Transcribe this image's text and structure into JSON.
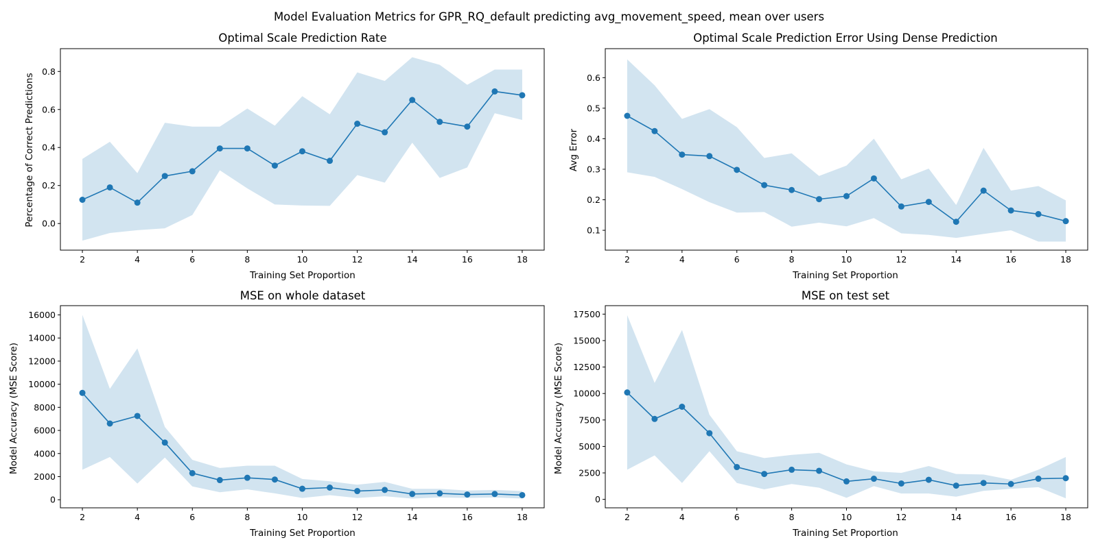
{
  "suptitle": "Model Evaluation Metrics for GPR_RQ_default predicting avg_movement_speed, mean over users",
  "colors": {
    "line": "#1f77b4",
    "band": "#1f77b4"
  },
  "chart_data": [
    {
      "type": "line",
      "title": "Optimal Scale Prediction Rate",
      "xlabel": "Training Set Proportion",
      "ylabel": "Percentage of Correct Predictions",
      "xlim": [
        1.2,
        18.8
      ],
      "ylim": [
        -0.14,
        0.92
      ],
      "xticks": [
        2,
        4,
        6,
        8,
        10,
        12,
        14,
        16,
        18
      ],
      "yticks": [
        0.0,
        0.2,
        0.4,
        0.6,
        0.8
      ],
      "ytick_labels": [
        "0.0",
        "0.2",
        "0.4",
        "0.6",
        "0.8"
      ],
      "x": [
        2,
        3,
        4,
        5,
        6,
        7,
        8,
        9,
        10,
        11,
        12,
        13,
        14,
        15,
        16,
        17,
        18
      ],
      "series": [
        {
          "values": [
            0.125,
            0.19,
            0.11,
            0.25,
            0.275,
            0.395,
            0.395,
            0.305,
            0.38,
            0.33,
            0.525,
            0.48,
            0.65,
            0.535,
            0.51,
            0.695,
            0.675
          ],
          "lower": [
            -0.09,
            -0.05,
            -0.035,
            -0.025,
            0.045,
            0.28,
            0.185,
            0.1,
            0.095,
            0.093,
            0.255,
            0.215,
            0.425,
            0.24,
            0.295,
            0.58,
            0.545
          ],
          "upper": [
            0.34,
            0.43,
            0.265,
            0.53,
            0.51,
            0.51,
            0.605,
            0.515,
            0.67,
            0.575,
            0.795,
            0.75,
            0.875,
            0.835,
            0.73,
            0.81,
            0.81
          ]
        }
      ]
    },
    {
      "type": "line",
      "title": "Optimal Scale Prediction Error Using Dense Prediction",
      "xlabel": "Training Set Proportion",
      "ylabel": "Avg Error",
      "xlim": [
        1.2,
        18.8
      ],
      "ylim": [
        0.035,
        0.695
      ],
      "xticks": [
        2,
        4,
        6,
        8,
        10,
        12,
        14,
        16,
        18
      ],
      "yticks": [
        0.1,
        0.2,
        0.3,
        0.4,
        0.5,
        0.6
      ],
      "ytick_labels": [
        "0.1",
        "0.2",
        "0.3",
        "0.4",
        "0.5",
        "0.6"
      ],
      "x": [
        2,
        3,
        4,
        5,
        6,
        7,
        8,
        9,
        10,
        11,
        12,
        13,
        14,
        15,
        16,
        17,
        18
      ],
      "series": [
        {
          "values": [
            0.475,
            0.425,
            0.348,
            0.343,
            0.298,
            0.248,
            0.232,
            0.202,
            0.212,
            0.27,
            0.178,
            0.193,
            0.128,
            0.23,
            0.165,
            0.153,
            0.13
          ],
          "lower": [
            0.29,
            0.275,
            0.235,
            0.192,
            0.158,
            0.16,
            0.112,
            0.125,
            0.113,
            0.14,
            0.09,
            0.085,
            0.075,
            0.088,
            0.1,
            0.063,
            0.063
          ],
          "upper": [
            0.66,
            0.575,
            0.465,
            0.497,
            0.438,
            0.337,
            0.352,
            0.278,
            0.312,
            0.4,
            0.267,
            0.302,
            0.183,
            0.37,
            0.23,
            0.245,
            0.198
          ]
        }
      ]
    },
    {
      "type": "line",
      "title": "MSE on whole dataset",
      "xlabel": "Training Set Proportion",
      "ylabel": "Model Accuracy (MSE Score)",
      "xlim": [
        1.2,
        18.8
      ],
      "ylim": [
        -700,
        16800
      ],
      "xticks": [
        2,
        4,
        6,
        8,
        10,
        12,
        14,
        16,
        18
      ],
      "yticks": [
        0,
        2000,
        4000,
        6000,
        8000,
        10000,
        12000,
        14000,
        16000
      ],
      "ytick_labels": [
        "0",
        "2000",
        "4000",
        "6000",
        "8000",
        "10000",
        "12000",
        "14000",
        "16000"
      ],
      "x": [
        2,
        3,
        4,
        5,
        6,
        7,
        8,
        9,
        10,
        11,
        12,
        13,
        14,
        15,
        16,
        17,
        18
      ],
      "series": [
        {
          "values": [
            9250,
            6600,
            7250,
            4950,
            2300,
            1700,
            1900,
            1750,
            950,
            1050,
            750,
            850,
            500,
            550,
            450,
            500,
            400
          ],
          "lower": [
            2600,
            3700,
            1400,
            3650,
            1150,
            650,
            900,
            550,
            150,
            400,
            150,
            300,
            100,
            200,
            150,
            200,
            100
          ],
          "upper": [
            16000,
            9600,
            13100,
            6300,
            3450,
            2750,
            2950,
            2950,
            1800,
            1600,
            1300,
            1550,
            950,
            950,
            800,
            850,
            750
          ]
        }
      ]
    },
    {
      "type": "line",
      "title": "MSE on test set",
      "xlabel": "Training Set Proportion",
      "ylabel": "Model Accuracy (MSE Score)",
      "xlim": [
        1.2,
        18.8
      ],
      "ylim": [
        -800,
        18300
      ],
      "xticks": [
        2,
        4,
        6,
        8,
        10,
        12,
        14,
        16,
        18
      ],
      "yticks": [
        0,
        2500,
        5000,
        7500,
        10000,
        12500,
        15000,
        17500
      ],
      "ytick_labels": [
        "0",
        "2500",
        "5000",
        "7500",
        "10000",
        "12500",
        "15000",
        "17500"
      ],
      "x": [
        2,
        3,
        4,
        5,
        6,
        7,
        8,
        9,
        10,
        11,
        12,
        13,
        14,
        15,
        16,
        17,
        18
      ],
      "series": [
        {
          "values": [
            10100,
            7600,
            8750,
            6250,
            3050,
            2400,
            2800,
            2700,
            1700,
            1950,
            1500,
            1850,
            1300,
            1550,
            1450,
            1950,
            2000
          ],
          "lower": [
            2800,
            4150,
            1550,
            4550,
            1550,
            950,
            1450,
            1100,
            150,
            1250,
            550,
            550,
            250,
            800,
            1000,
            1150,
            100
          ],
          "upper": [
            17400,
            11000,
            16000,
            8000,
            4550,
            3900,
            4200,
            4400,
            3300,
            2650,
            2500,
            3150,
            2400,
            2350,
            1850,
            2800,
            4000
          ]
        }
      ]
    }
  ]
}
